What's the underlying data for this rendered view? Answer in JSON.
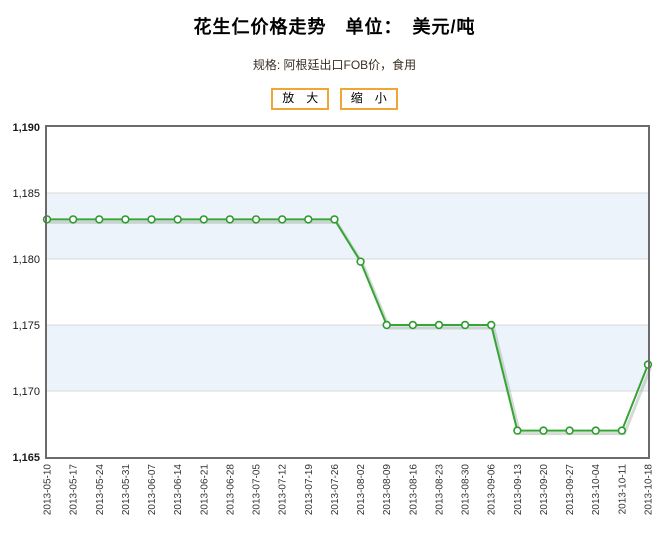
{
  "page": {
    "title": "花生仁价格走势　单位：　美元/吨",
    "subtitle": "规格: 阿根廷出口FOB价，食用"
  },
  "toolbar": {
    "zoom_in_label": "放　大",
    "zoom_out_label": "缩　小"
  },
  "colors": {
    "line": "#37a437",
    "marker_fill": "#ffffff",
    "marker_stroke": "#2f9b2f",
    "shadow": "#9db09d",
    "band_blue": "#edf3fa",
    "band_white": "#ffffff",
    "gridline": "#d8d8d8",
    "plot_border": "#6b6b6b",
    "axis_label": "#1a1a1a",
    "date_label": "#333333",
    "button_border": "#efa636"
  },
  "chart_data": {
    "type": "line",
    "title": "花生仁价格走势",
    "unit": "美元/吨",
    "series_name": "阿根廷出口FOB价，食用",
    "x": [
      "2013-05-10",
      "2013-05-17",
      "2013-05-24",
      "2013-05-31",
      "2013-06-07",
      "2013-06-14",
      "2013-06-21",
      "2013-06-28",
      "2013-07-05",
      "2013-07-12",
      "2013-07-19",
      "2013-07-26",
      "2013-08-02",
      "2013-08-09",
      "2013-08-16",
      "2013-08-23",
      "2013-08-30",
      "2013-09-06",
      "2013-09-13",
      "2013-09-20",
      "2013-09-27",
      "2013-10-04",
      "2013-10-11",
      "2013-10-18"
    ],
    "values": [
      1183,
      1183,
      1183,
      1183,
      1183,
      1183,
      1183,
      1183,
      1183,
      1183,
      1183,
      1183,
      1179.8,
      1175,
      1175,
      1175,
      1175,
      1175,
      1167,
      1167,
      1167,
      1167,
      1167,
      1172
    ],
    "ylim": [
      1165,
      1190
    ],
    "ytick_step": 5,
    "grid": true,
    "alternating_bands": true,
    "legend_position": "none"
  }
}
